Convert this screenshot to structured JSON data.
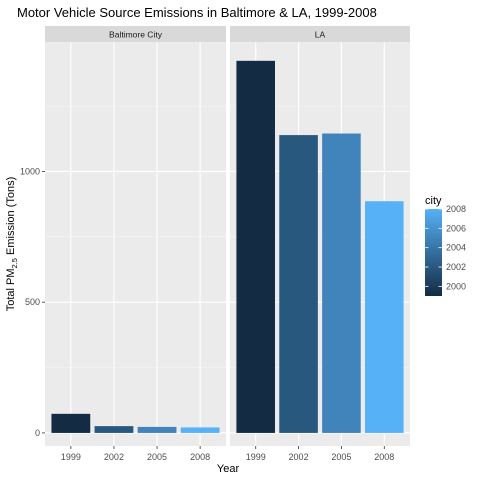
{
  "chart_data": {
    "type": "bar",
    "title": "Motor Vehicle Source Emissions in Baltimore & LA, 1999-2008",
    "xlabel": "Year",
    "ylabel": {
      "prefix": "Total PM",
      "subscript": "2.5",
      "suffix": " Emission (Tons)"
    },
    "categories": [
      "1999",
      "2002",
      "2005",
      "2008"
    ],
    "facets": [
      {
        "name": "Baltimore City",
        "values": [
          73,
          26,
          23,
          21
        ]
      },
      {
        "name": "LA",
        "values": [
          1423,
          1139,
          1145,
          886
        ]
      }
    ],
    "ylim": [
      -50,
      1495
    ],
    "yticks": [
      0,
      500,
      1000
    ],
    "grid": true,
    "legend": {
      "title": "city",
      "position": "right",
      "range": [
        1999,
        2008
      ],
      "ticks": [
        2008,
        2006,
        2004,
        2002,
        2000
      ],
      "color_low": "#132B43",
      "color_high": "#56B1F7"
    }
  }
}
